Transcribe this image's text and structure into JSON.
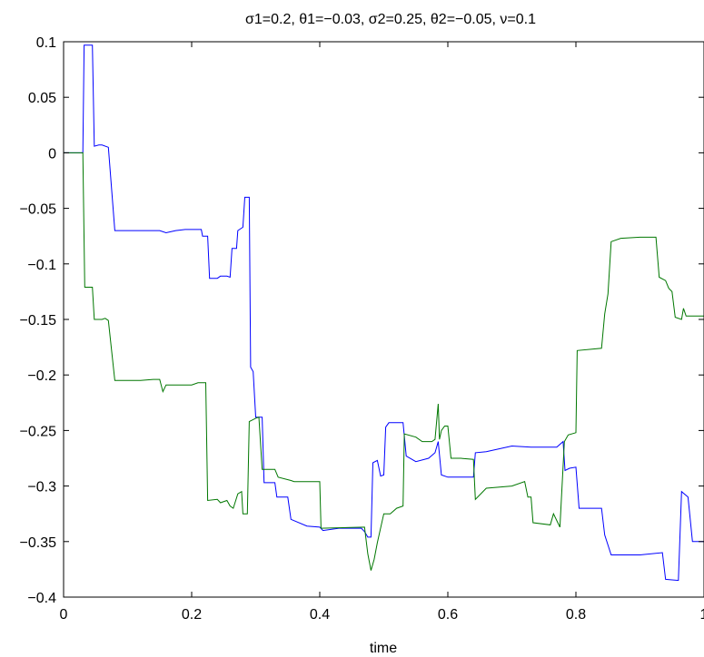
{
  "chart_data": {
    "type": "line",
    "title": "σ1=0.2, θ1=−0.03, σ2=0.25, θ2=−0.05, ν=0.1",
    "xlabel": "time",
    "ylabel": "",
    "xlim": [
      0,
      1
    ],
    "ylim": [
      -0.4,
      0.1
    ],
    "xticks": [
      0,
      0.2,
      0.4,
      0.6,
      0.8,
      1
    ],
    "xtick_labels": [
      "0",
      "0.2",
      "0.4",
      "0.6",
      "0.8",
      "1"
    ],
    "yticks": [
      0.1,
      0.05,
      0,
      -0.05,
      -0.1,
      -0.15,
      -0.2,
      -0.25,
      -0.3,
      -0.35,
      -0.4
    ],
    "ytick_labels": [
      "0.1",
      "0.05",
      "0",
      "−0.05",
      "−0.1",
      "−0.15",
      "−0.2",
      "−0.25",
      "−0.3",
      "−0.35",
      "−0.4"
    ],
    "grid": false,
    "series": [
      {
        "color": "#0000ff",
        "points": [
          [
            0,
            0
          ],
          [
            0.03,
            0
          ],
          [
            0.032,
            0.097
          ],
          [
            0.045,
            0.097
          ],
          [
            0.048,
            0.006
          ],
          [
            0.055,
            0.007
          ],
          [
            0.06,
            0.007
          ],
          [
            0.07,
            0.005
          ],
          [
            0.08,
            -0.07
          ],
          [
            0.12,
            -0.07
          ],
          [
            0.15,
            -0.07
          ],
          [
            0.16,
            -0.072
          ],
          [
            0.175,
            -0.07
          ],
          [
            0.19,
            -0.069
          ],
          [
            0.2,
            -0.069
          ],
          [
            0.215,
            -0.069
          ],
          [
            0.217,
            -0.075
          ],
          [
            0.225,
            -0.075
          ],
          [
            0.228,
            -0.113
          ],
          [
            0.24,
            -0.113
          ],
          [
            0.245,
            -0.111
          ],
          [
            0.255,
            -0.111
          ],
          [
            0.26,
            -0.112
          ],
          [
            0.263,
            -0.086
          ],
          [
            0.27,
            -0.086
          ],
          [
            0.272,
            -0.07
          ],
          [
            0.28,
            -0.067
          ],
          [
            0.283,
            -0.04
          ],
          [
            0.29,
            -0.04
          ],
          [
            0.292,
            -0.193
          ],
          [
            0.296,
            -0.197
          ],
          [
            0.3,
            -0.238
          ],
          [
            0.31,
            -0.238
          ],
          [
            0.313,
            -0.297
          ],
          [
            0.33,
            -0.297
          ],
          [
            0.333,
            -0.31
          ],
          [
            0.35,
            -0.31
          ],
          [
            0.355,
            -0.33
          ],
          [
            0.38,
            -0.336
          ],
          [
            0.4,
            -0.337
          ],
          [
            0.405,
            -0.34
          ],
          [
            0.43,
            -0.338
          ],
          [
            0.465,
            -0.338
          ],
          [
            0.47,
            -0.341
          ],
          [
            0.475,
            -0.346
          ],
          [
            0.48,
            -0.346
          ],
          [
            0.483,
            -0.279
          ],
          [
            0.49,
            -0.277
          ],
          [
            0.495,
            -0.291
          ],
          [
            0.5,
            -0.29
          ],
          [
            0.503,
            -0.247
          ],
          [
            0.508,
            -0.243
          ],
          [
            0.53,
            -0.243
          ],
          [
            0.535,
            -0.273
          ],
          [
            0.55,
            -0.278
          ],
          [
            0.57,
            -0.275
          ],
          [
            0.58,
            -0.27
          ],
          [
            0.585,
            -0.26
          ],
          [
            0.59,
            -0.29
          ],
          [
            0.6,
            -0.292
          ],
          [
            0.64,
            -0.292
          ],
          [
            0.643,
            -0.27
          ],
          [
            0.66,
            -0.269
          ],
          [
            0.7,
            -0.264
          ],
          [
            0.73,
            -0.265
          ],
          [
            0.77,
            -0.265
          ],
          [
            0.78,
            -0.26
          ],
          [
            0.783,
            -0.286
          ],
          [
            0.79,
            -0.284
          ],
          [
            0.8,
            -0.283
          ],
          [
            0.805,
            -0.32
          ],
          [
            0.83,
            -0.32
          ],
          [
            0.84,
            -0.32
          ],
          [
            0.845,
            -0.344
          ],
          [
            0.855,
            -0.362
          ],
          [
            0.9,
            -0.362
          ],
          [
            0.935,
            -0.36
          ],
          [
            0.94,
            -0.384
          ],
          [
            0.96,
            -0.385
          ],
          [
            0.965,
            -0.305
          ],
          [
            0.975,
            -0.31
          ],
          [
            0.982,
            -0.35
          ],
          [
            1,
            -0.35
          ]
        ]
      },
      {
        "color": "#007700",
        "points": [
          [
            0,
            0
          ],
          [
            0.03,
            0
          ],
          [
            0.033,
            -0.121
          ],
          [
            0.045,
            -0.121
          ],
          [
            0.048,
            -0.15
          ],
          [
            0.06,
            -0.15
          ],
          [
            0.065,
            -0.149
          ],
          [
            0.07,
            -0.151
          ],
          [
            0.08,
            -0.205
          ],
          [
            0.12,
            -0.205
          ],
          [
            0.14,
            -0.204
          ],
          [
            0.15,
            -0.204
          ],
          [
            0.155,
            -0.215
          ],
          [
            0.16,
            -0.209
          ],
          [
            0.2,
            -0.209
          ],
          [
            0.21,
            -0.207
          ],
          [
            0.222,
            -0.207
          ],
          [
            0.225,
            -0.313
          ],
          [
            0.24,
            -0.312
          ],
          [
            0.245,
            -0.315
          ],
          [
            0.255,
            -0.313
          ],
          [
            0.26,
            -0.318
          ],
          [
            0.265,
            -0.32
          ],
          [
            0.272,
            -0.307
          ],
          [
            0.278,
            -0.305
          ],
          [
            0.28,
            -0.325
          ],
          [
            0.287,
            -0.325
          ],
          [
            0.29,
            -0.242
          ],
          [
            0.3,
            -0.239
          ],
          [
            0.305,
            -0.238
          ],
          [
            0.31,
            -0.285
          ],
          [
            0.33,
            -0.285
          ],
          [
            0.335,
            -0.292
          ],
          [
            0.355,
            -0.295
          ],
          [
            0.36,
            -0.296
          ],
          [
            0.38,
            -0.296
          ],
          [
            0.4,
            -0.296
          ],
          [
            0.402,
            -0.338
          ],
          [
            0.47,
            -0.337
          ],
          [
            0.475,
            -0.361
          ],
          [
            0.48,
            -0.376
          ],
          [
            0.485,
            -0.366
          ],
          [
            0.49,
            -0.351
          ],
          [
            0.5,
            -0.325
          ],
          [
            0.51,
            -0.325
          ],
          [
            0.52,
            -0.32
          ],
          [
            0.53,
            -0.318
          ],
          [
            0.532,
            -0.253
          ],
          [
            0.55,
            -0.256
          ],
          [
            0.56,
            -0.26
          ],
          [
            0.575,
            -0.26
          ],
          [
            0.58,
            -0.258
          ],
          [
            0.585,
            -0.226
          ],
          [
            0.587,
            -0.258
          ],
          [
            0.59,
            -0.25
          ],
          [
            0.595,
            -0.246
          ],
          [
            0.6,
            -0.246
          ],
          [
            0.605,
            -0.275
          ],
          [
            0.62,
            -0.275
          ],
          [
            0.64,
            -0.276
          ],
          [
            0.643,
            -0.312
          ],
          [
            0.66,
            -0.302
          ],
          [
            0.7,
            -0.3
          ],
          [
            0.72,
            -0.296
          ],
          [
            0.725,
            -0.31
          ],
          [
            0.73,
            -0.31
          ],
          [
            0.733,
            -0.333
          ],
          [
            0.76,
            -0.335
          ],
          [
            0.765,
            -0.325
          ],
          [
            0.775,
            -0.337
          ],
          [
            0.782,
            -0.26
          ],
          [
            0.788,
            -0.254
          ],
          [
            0.8,
            -0.252
          ],
          [
            0.802,
            -0.178
          ],
          [
            0.84,
            -0.176
          ],
          [
            0.845,
            -0.145
          ],
          [
            0.85,
            -0.127
          ],
          [
            0.855,
            -0.08
          ],
          [
            0.87,
            -0.077
          ],
          [
            0.9,
            -0.076
          ],
          [
            0.925,
            -0.076
          ],
          [
            0.93,
            -0.112
          ],
          [
            0.94,
            -0.115
          ],
          [
            0.945,
            -0.122
          ],
          [
            0.95,
            -0.125
          ],
          [
            0.955,
            -0.148
          ],
          [
            0.965,
            -0.15
          ],
          [
            0.968,
            -0.14
          ],
          [
            0.972,
            -0.147
          ],
          [
            1,
            -0.147
          ]
        ]
      }
    ]
  }
}
